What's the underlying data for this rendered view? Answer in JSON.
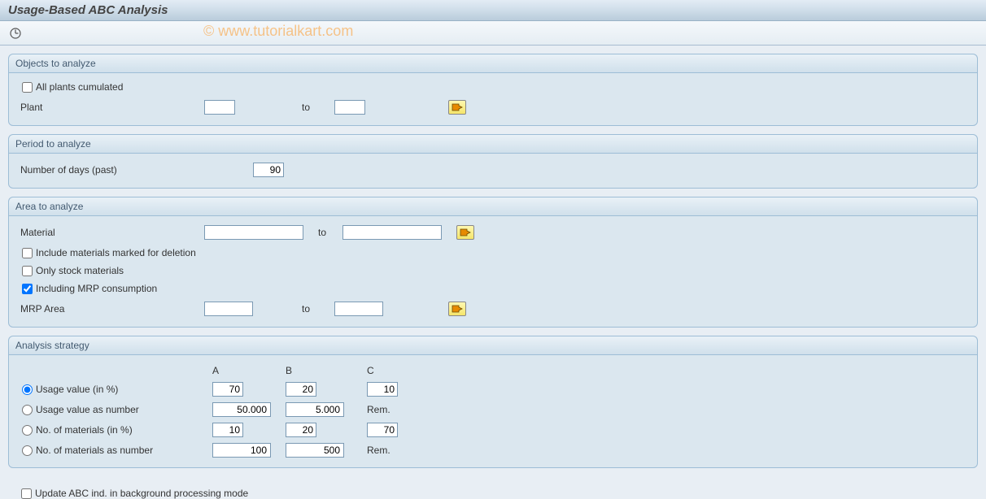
{
  "title": "Usage-Based ABC Analysis",
  "watermark": "© www.tutorialkart.com",
  "groups": {
    "objects": {
      "title": "Objects to analyze",
      "all_plants_label": "All plants cumulated",
      "all_plants_checked": false,
      "plant_label": "Plant",
      "plant_from": "",
      "to_label": "to",
      "plant_to": ""
    },
    "period": {
      "title": "Period to analyze",
      "days_label": "Number of days (past)",
      "days_value": "90"
    },
    "area": {
      "title": "Area to analyze",
      "material_label": "Material",
      "material_from": "",
      "to_label": "to",
      "material_to": "",
      "include_deletion_label": "Include materials marked for deletion",
      "include_deletion_checked": false,
      "only_stock_label": "Only stock materials",
      "only_stock_checked": false,
      "mrp_consumption_label": "Including MRP consumption",
      "mrp_consumption_checked": true,
      "mrp_area_label": "MRP Area",
      "mrp_area_from": "",
      "mrp_area_to": ""
    },
    "strategy": {
      "title": "Analysis strategy",
      "col_a": "A",
      "col_b": "B",
      "col_c": "C",
      "rows": [
        {
          "label": "Usage value (in %)",
          "a": "70",
          "b": "20",
          "c": "10",
          "c_is_rem": false,
          "checked": true
        },
        {
          "label": "Usage value as number",
          "a": "50.000",
          "b": "5.000",
          "c": "Rem.",
          "c_is_rem": true,
          "checked": false
        },
        {
          "label": "No. of materials (in %)",
          "a": "10",
          "b": "20",
          "c": "70",
          "c_is_rem": false,
          "checked": false
        },
        {
          "label": "No. of materials as number",
          "a": "100",
          "b": "500",
          "c": "Rem.",
          "c_is_rem": true,
          "checked": false
        }
      ]
    }
  },
  "bottom": {
    "update_bg_label": "Update ABC ind. in background processing mode",
    "update_bg_checked": false
  },
  "colors": {
    "page_bg": "#e8eef4",
    "group_bg": "#dbe7ef",
    "group_border": "#9dbdd6",
    "header_text": "#444444",
    "multi_btn_bg_top": "#fff8b0",
    "multi_btn_bg_bottom": "#f5e56a",
    "arrow_fill": "#e78a00",
    "arrow_stroke": "#6a4b00"
  }
}
